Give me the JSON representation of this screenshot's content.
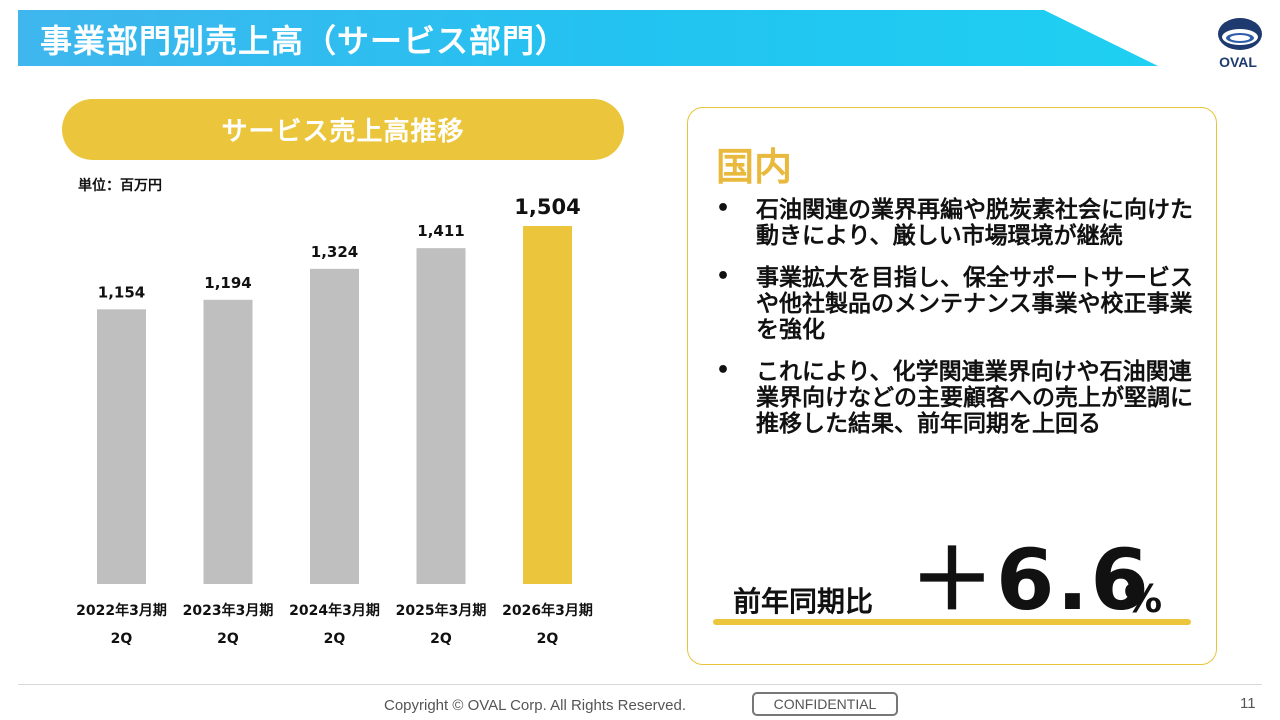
{
  "title": "事業部門別売上高（サービス部門）",
  "logo": {
    "text": "OVAL",
    "icon": "oval-logo-icon"
  },
  "chart_header": "サービス売上高推移",
  "unit_label": "単位：百万円",
  "chart_data": {
    "type": "bar",
    "title": "サービス売上高推移",
    "ylabel": "百万円",
    "xlabel": "",
    "categories": [
      [
        "2022年3月期",
        "2Q"
      ],
      [
        "2023年3月期",
        "2Q"
      ],
      [
        "2024年3月期",
        "2Q"
      ],
      [
        "2025年3月期",
        "2Q"
      ],
      [
        "2026年3月期",
        "2Q"
      ]
    ],
    "values": [
      1154,
      1194,
      1324,
      1411,
      1504
    ],
    "value_labels": [
      "1,154",
      "1,194",
      "1,324",
      "1,411",
      "1,504"
    ],
    "highlight_index": 4,
    "ylim": [
      0,
      1504
    ],
    "grid": false,
    "colors": {
      "default": "#bfbfbf",
      "highlight": "#ebc63c"
    }
  },
  "panel": {
    "heading": "国内",
    "bullets": [
      "石油関連の業界再編や脱炭素社会に向けた動きにより、厳しい市場環境が継続",
      "事業拡大を目指し、保全サポートサービスや他社製品のメンテナンス事業や校正事業を強化",
      "これにより、化学関連業界向けや石油関連業界向けなどの主要顧客への売上が堅調に推移した結果、前年同期を上回る"
    ],
    "yoy_label": "前年同期比",
    "yoy_value": "＋6.6",
    "yoy_unit": "%"
  },
  "footer": {
    "copyright": "Copyright © OVAL Corp. All Rights Reserved.",
    "confidential": "CONFIDENTIAL",
    "page_number": "11"
  },
  "colors": {
    "banner": "#22c3f0",
    "accent": "#ebc63c",
    "heading": "#e8b93c",
    "logo": "#1e3a6e"
  }
}
